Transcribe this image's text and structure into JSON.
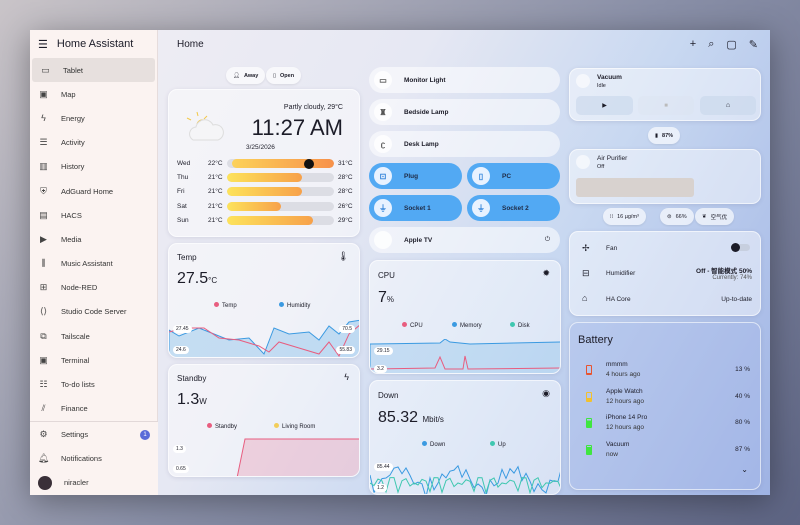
{
  "app": {
    "title": "Home Assistant",
    "page": "Home"
  },
  "sidebar": {
    "items": [
      {
        "label": "Tablet",
        "icon": "tablet-icon",
        "g": "▭"
      },
      {
        "label": "Map",
        "icon": "map-icon",
        "g": "▣"
      },
      {
        "label": "Energy",
        "icon": "lightning-icon",
        "g": "ϟ"
      },
      {
        "label": "Activity",
        "icon": "list-icon",
        "g": "☰"
      },
      {
        "label": "History",
        "icon": "chart-icon",
        "g": "▥"
      },
      {
        "label": "AdGuard Home",
        "icon": "shield-icon",
        "g": "⛨"
      },
      {
        "label": "HACS",
        "icon": "hacs-icon",
        "g": "▤"
      },
      {
        "label": "Media",
        "icon": "media-icon",
        "g": "▶"
      },
      {
        "label": "Music Assistant",
        "icon": "library-icon",
        "g": "⫼"
      },
      {
        "label": "Node-RED",
        "icon": "sitemap-icon",
        "g": "⊞"
      },
      {
        "label": "Studio Code Server",
        "icon": "vscode-icon",
        "g": "⟨⟩"
      },
      {
        "label": "Tailscale",
        "icon": "network-icon",
        "g": "⧉"
      },
      {
        "label": "Terminal",
        "icon": "terminal-icon",
        "g": "▣"
      },
      {
        "label": "To-do lists",
        "icon": "clipboard-icon",
        "g": "☷"
      },
      {
        "label": "Finance",
        "icon": "finance-icon",
        "g": "⫽"
      }
    ],
    "settings": "Settings",
    "settings_badge": "1",
    "notifications": "Notifications",
    "user": "niracler"
  },
  "chips": {
    "away": "Away",
    "open": "Open"
  },
  "weather": {
    "condition": "Partly cloudy, 29°C",
    "time": "11:27 AM",
    "date": "3/25/2026",
    "forecast": [
      {
        "day": "Wed",
        "low": "22°C",
        "high": "31°C",
        "from": 0.05,
        "to": 1,
        "now": 0.77
      },
      {
        "day": "Thu",
        "low": "21°C",
        "high": "28°C",
        "from": 0,
        "to": 0.7
      },
      {
        "day": "Fri",
        "low": "21°C",
        "high": "28°C",
        "from": 0,
        "to": 0.7
      },
      {
        "day": "Sat",
        "low": "21°C",
        "high": "26°C",
        "from": 0,
        "to": 0.5
      },
      {
        "day": "Sun",
        "low": "21°C",
        "high": "29°C",
        "from": 0,
        "to": 0.8
      }
    ]
  },
  "temp": {
    "title": "Temp",
    "value": "27.5",
    "unit": "°C",
    "legend": [
      "Temp",
      "Humidity"
    ],
    "max": "27.45",
    "min": "24.6",
    "rmax": "70.5",
    "rmin": "55.83"
  },
  "standby": {
    "title": "Standby",
    "value": "1.3",
    "unit": "W",
    "legend": [
      "Standby",
      "Living Room"
    ],
    "max": "1.3",
    "min": "0.65"
  },
  "devices": {
    "monitor": "Monitor Light",
    "bedside": "Bedside Lamp",
    "desk": "Desk Lamp",
    "plug": "Plug",
    "pc": "PC",
    "socket1": "Socket 1",
    "socket2": "Socket 2",
    "appletv": "Apple TV"
  },
  "cpu": {
    "title": "CPU",
    "value": "7",
    "unit": "%",
    "legend": [
      "CPU",
      "Memory",
      "Disk"
    ],
    "max": "29.15",
    "min": "3.2"
  },
  "down": {
    "title": "Down",
    "value": "85.32",
    "unit": "Mbit/s",
    "legend": [
      "Down",
      "Up"
    ],
    "max": "85.44",
    "min": "1.2"
  },
  "vacuum": {
    "name": "Vacuum",
    "state": "Idle",
    "battery": "87%"
  },
  "purifier": {
    "name": "Air Purifier",
    "state": "Off",
    "pm": "16 µg/m³",
    "humidity": "66%",
    "quality": "空气优"
  },
  "entities": [
    {
      "name": "Fan",
      "value": "",
      "icon": "fan-icon"
    },
    {
      "name": "Humidifier",
      "value": "Off - 智能模式 50%",
      "sub": "Currently: 74%",
      "icon": "humidifier-icon"
    },
    {
      "name": "HA Core",
      "value": "Up-to-date",
      "icon": "home-assistant-icon"
    }
  ],
  "battery": {
    "title": "Battery",
    "items": [
      {
        "name": "mmmm",
        "time": "4 hours ago",
        "value": "13 %",
        "color": "#e8542f",
        "level": 0.13
      },
      {
        "name": "Apple Watch",
        "time": "12 hours ago",
        "value": "40 %",
        "color": "#f2c12e",
        "level": 0.4
      },
      {
        "name": "iPhone 14 Pro",
        "time": "12 hours ago",
        "value": "80 %",
        "color": "#3fe63f",
        "level": 0.8
      },
      {
        "name": "Vacuum",
        "time": "now",
        "value": "87 %",
        "color": "#3fe63f",
        "level": 0.87
      }
    ]
  },
  "colors": {
    "accent": "#52a9f3",
    "temp": "#e85d7f",
    "humidity": "#3b9ae1",
    "disk": "#3fc7b0",
    "living": "#f2cd5a"
  }
}
